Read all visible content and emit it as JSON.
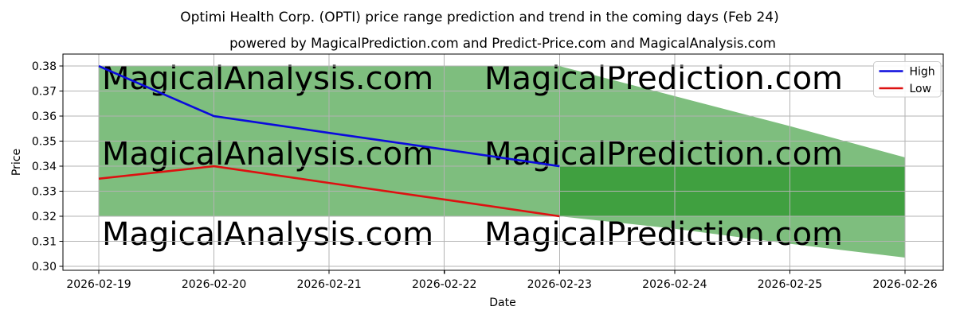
{
  "watermarks": {
    "left_text": "MagicalAnalysis.com",
    "right_text": "MagicalPrediction.com",
    "color": "rgba(150,150,150,0.48)"
  },
  "chart_data": {
    "type": "line",
    "title": "Optimi Health Corp. (OPTI) price range prediction and trend in the coming days (Feb 24)",
    "subtitle": "powered by MagicalPrediction.com and Predict-Price.com and MagicalAnalysis.com",
    "xlabel": "Date",
    "ylabel": "Price",
    "categories": [
      "2026-02-19",
      "2026-02-20",
      "2026-02-21",
      "2026-02-22",
      "2026-02-23",
      "2026-02-24",
      "2026-02-25",
      "2026-02-26"
    ],
    "yticks": [
      0.38,
      0.37,
      0.36,
      0.35,
      0.34,
      0.33,
      0.32,
      0.31,
      0.3
    ],
    "ylim": [
      0.2984,
      0.3848
    ],
    "grid": true,
    "grid_color": "#b3b3b3",
    "spine_color": "#000000",
    "legend_position": "upper right",
    "series": [
      {
        "name": "High",
        "color": "#0b0bdd",
        "values": [
          0.38,
          0.36,
          0.3533,
          0.3467,
          0.34,
          null,
          null,
          null
        ]
      },
      {
        "name": "Low",
        "color": "#dd1111",
        "values": [
          0.335,
          0.34,
          0.3333,
          0.3267,
          0.32,
          null,
          null,
          null
        ]
      }
    ],
    "bands": [
      {
        "name": "prediction-range",
        "color": "#7ebe7e",
        "start_index": 0,
        "top": [
          0.38,
          0.38,
          0.38,
          0.38,
          0.38,
          0.368,
          0.356,
          0.3435
        ],
        "bottom": [
          0.32,
          0.32,
          0.32,
          0.32,
          0.32,
          0.315,
          0.309,
          0.3035
        ]
      },
      {
        "name": "forecast-core",
        "color": "#40a040",
        "start_index": 4,
        "top": [
          0.34,
          0.34,
          0.34,
          0.34
        ],
        "bottom": [
          0.32,
          0.32,
          0.32,
          0.32
        ]
      }
    ]
  }
}
